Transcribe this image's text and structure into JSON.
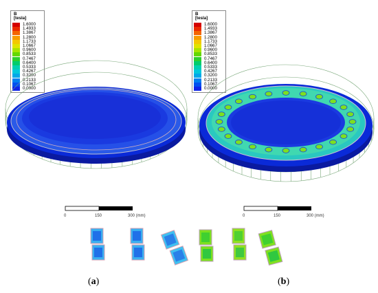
{
  "legend": {
    "title": "B",
    "unit": "[tesla]",
    "entries": [
      {
        "value": "1.6000",
        "color": "#d40000"
      },
      {
        "value": "1.4933",
        "color": "#ea2a00"
      },
      {
        "value": "1.3867",
        "color": "#f46400"
      },
      {
        "value": "1.2800",
        "color": "#f89c00"
      },
      {
        "value": "1.1733",
        "color": "#f4c800"
      },
      {
        "value": "1.0667",
        "color": "#e0e400"
      },
      {
        "value": "0.9600",
        "color": "#a8e400"
      },
      {
        "value": "0.8533",
        "color": "#64d800"
      },
      {
        "value": "0.7467",
        "color": "#2cd02c"
      },
      {
        "value": "0.6400",
        "color": "#00cc6c"
      },
      {
        "value": "0.5333",
        "color": "#00d0b0"
      },
      {
        "value": "0.4267",
        "color": "#00c8dc"
      },
      {
        "value": "0.3200",
        "color": "#00a8e8"
      },
      {
        "value": "0.2133",
        "color": "#0080f0"
      },
      {
        "value": "0.1067",
        "color": "#0050f0"
      },
      {
        "value": "0.0000",
        "color": "#1024e8"
      }
    ]
  },
  "scalebar": {
    "ticks": [
      "0",
      "150",
      "300 (mm)"
    ]
  },
  "captions": {
    "a": "a",
    "b": "b"
  },
  "colors": {
    "disk_base": "#0a2ad8",
    "disk_inner": "#1a3ae0",
    "rim_a": "#2a60ee",
    "ring_b": "#2ad0c0",
    "pole_b": "#7ce020"
  }
}
